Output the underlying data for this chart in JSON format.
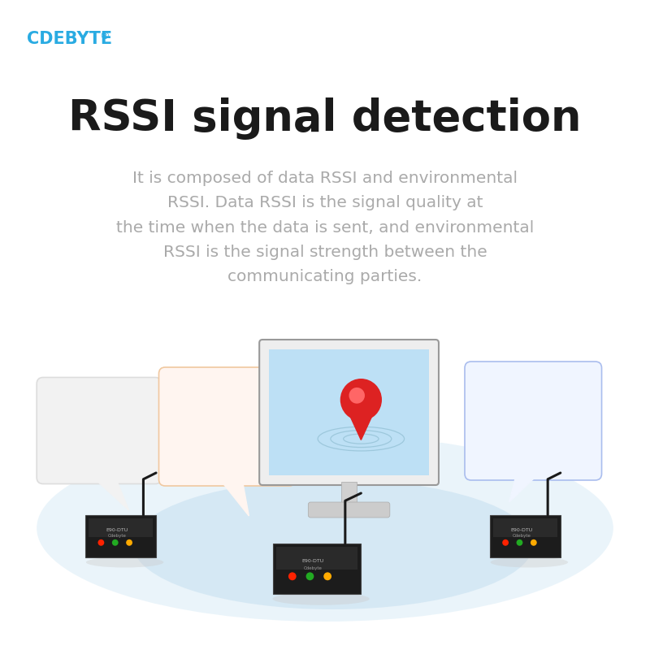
{
  "bg_color": "#ffffff",
  "brand_text": "CDEBYTE",
  "brand_color": "#29abe2",
  "brand_registered": "®",
  "title": "RSSI signal detection",
  "title_color": "#1a1a1a",
  "title_fontsize": 38,
  "body_text": "It is composed of data RSSI and environmental\nRSSI. Data RSSI is the signal quality at\nthe time when the data is sent, and environmental\nRSSI is the signal strength between the\ncommunicating parties.",
  "body_color": "#aaaaaa",
  "body_fontsize": 14.5,
  "ellipse_outer_color": "#ddeef8",
  "ellipse_inner_color": "#c5dff0",
  "monitor_screen_color": "#bde0f5",
  "pin_color": "#dd2222",
  "bubble_gray_color": "#f2f2f2",
  "bubble_gray_stroke": "#dddddd",
  "bubble_orange_color": "#fff5f0",
  "bubble_orange_stroke": "#f0c8a0",
  "bubble_blue_color": "#f0f5ff",
  "bubble_blue_stroke": "#aabdee",
  "label_gray_color": "#aaaaaa",
  "label_orange_color": "#cc4400",
  "label_blue_color": "#2255cc"
}
